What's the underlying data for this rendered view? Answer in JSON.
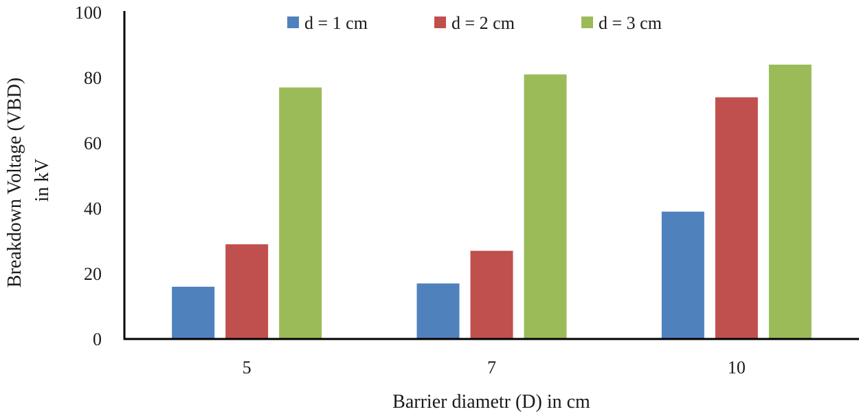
{
  "chart_data": {
    "type": "bar",
    "categories": [
      "5",
      "7",
      "10"
    ],
    "series": [
      {
        "name": "d = 1 cm",
        "color": "#4f81bd",
        "values": [
          16,
          17,
          39
        ]
      },
      {
        "name": "d = 2 cm",
        "color": "#c0504d",
        "values": [
          29,
          27,
          74
        ]
      },
      {
        "name": "d = 3 cm",
        "color": "#9bbb59",
        "values": [
          77,
          81,
          84
        ]
      }
    ],
    "xlabel": "Barrier diametr (D) in cm",
    "ylabel": [
      "Breakdown Voltage (VBD)",
      "in kV"
    ],
    "ylim": [
      0,
      100
    ],
    "yticks": [
      "0",
      "20",
      "40",
      "60",
      "80",
      "100"
    ],
    "grid": false,
    "legend": "top-center"
  }
}
